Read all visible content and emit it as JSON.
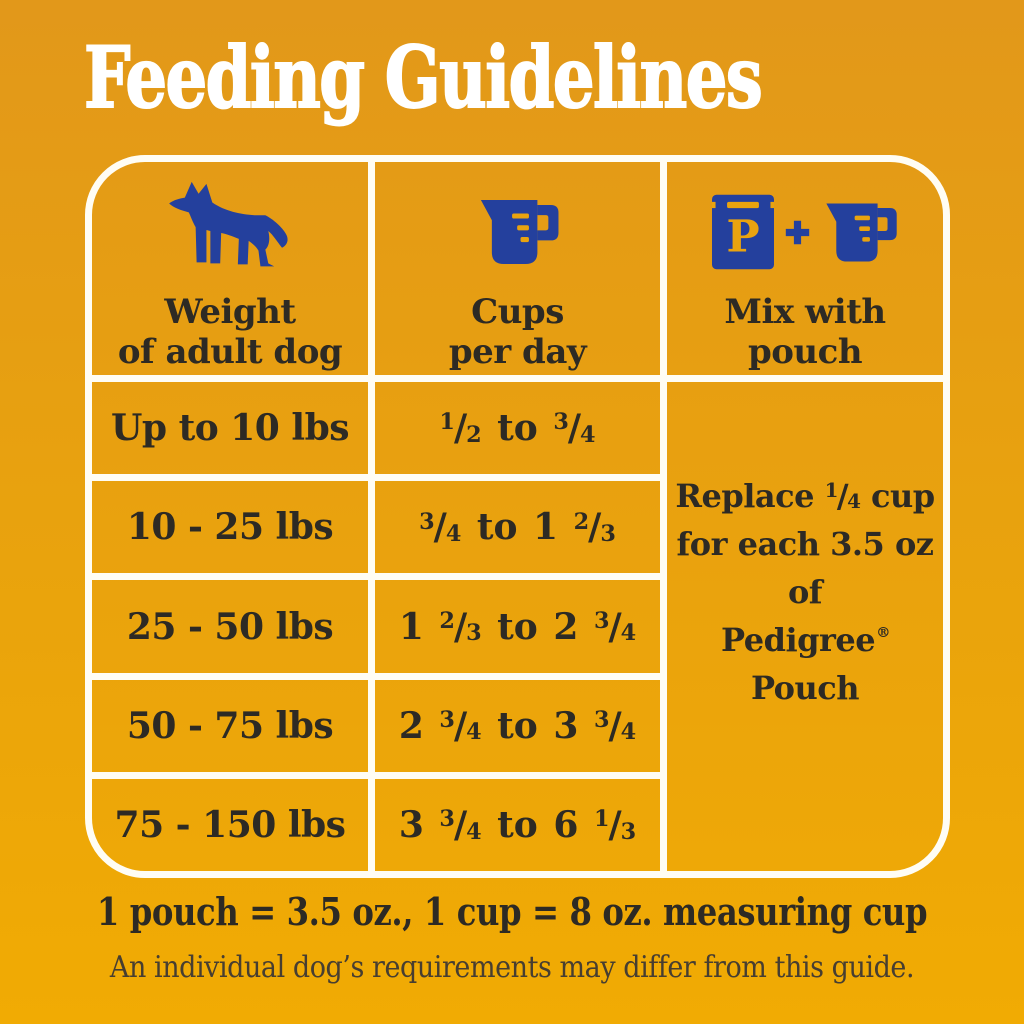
{
  "title": "Feeding Guidelines",
  "colors": {
    "background_top": "#E2981A",
    "background_bottom": "#F1AB03",
    "brand_blue": "#24409D",
    "accent_orange": "#E9A30F",
    "text_dark": "#2D2A24",
    "text_muted": "#473E31",
    "line_white": "#FFFDF4",
    "title_white": "#FFFFFF"
  },
  "icons": {
    "dog": "dog-icon",
    "measuring_cup": "measuring-cup-icon",
    "pouch": "pouch-icon",
    "plus": "plus-icon",
    "pouch_letter": "P"
  },
  "table": {
    "headers": [
      {
        "line1": "Weight",
        "line2": "of adult dog"
      },
      {
        "line1": "Cups",
        "line2": "per day"
      },
      {
        "line1": "Mix with",
        "line2": "pouch"
      }
    ],
    "rows": [
      {
        "weight": "Up to 10 lbs",
        "cups": "1/2 to 3/4"
      },
      {
        "weight": "10 - 25 lbs",
        "cups": "3/4 to 1 2/3"
      },
      {
        "weight": "25 - 50 lbs",
        "cups": "1 2/3 to 2 3/4"
      },
      {
        "weight": "50 - 75 lbs",
        "cups": "2 3/4 to 3 3/4"
      },
      {
        "weight": "75 - 150 lbs",
        "cups": "3 3/4 to 6 1/3"
      }
    ],
    "merged_note_lines": [
      "Replace 1/4 cup",
      "for each 3.5 oz",
      "of Pedigree®",
      "Pouch"
    ]
  },
  "footer": {
    "equivalence": "1 pouch = 3.5 oz., 1 cup = 8 oz. measuring cup",
    "disclaimer": "An individual dog’s requirements may differ from this guide."
  }
}
